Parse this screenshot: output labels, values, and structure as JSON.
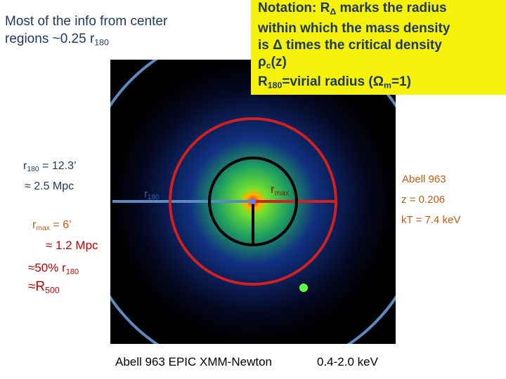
{
  "intro": {
    "line1": "Most of the info from center",
    "line2": "regions ~0.25 r",
    "line2_sub": "180"
  },
  "notation": {
    "l1": [
      "Notation: R",
      "Δ",
      " marks the radius"
    ],
    "l2": "within which the mass density",
    "l3": "is Δ times the critical density",
    "l4": [
      "ρ",
      "c",
      "(z)"
    ],
    "l5": [
      "R",
      "180",
      "=virial radius (Ω",
      "m",
      "=1)"
    ]
  },
  "left_labels": {
    "r180": [
      "r",
      "180",
      " = 12.3’"
    ],
    "r180_mpc": "≈ 2.5 Mpc",
    "rmax": [
      "r",
      "max",
      " = 6’"
    ],
    "rmax_mpc": "≈ 1.2 Mpc",
    "percent": [
      "≈50% r",
      "180"
    ],
    "r500": [
      "≈R",
      "500"
    ]
  },
  "cluster": {
    "name": "Abell 963",
    "redshift": "z = 0.206",
    "temperature": "kT = 7.4 keV"
  },
  "image_labels": {
    "r180": [
      "r",
      "180"
    ],
    "rmax": [
      "r",
      "max"
    ]
  },
  "caption": {
    "instrument": "Abell 963 EPIC XMM-Newton",
    "band": "0.4-2.0 keV"
  }
}
